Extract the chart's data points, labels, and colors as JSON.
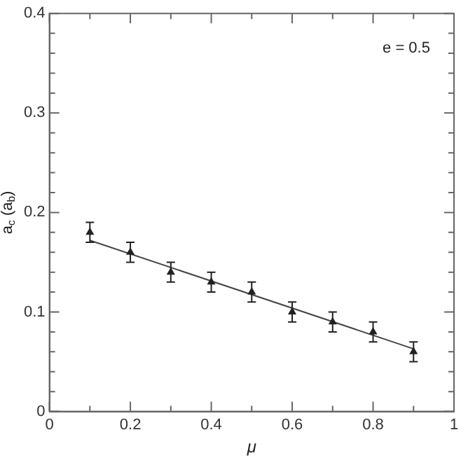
{
  "chart_data": {
    "type": "scatter",
    "xlabel": "μ",
    "ylabel": "a$_{c}$ (a$_{b}$)",
    "annotations": [
      "e = 0.5"
    ],
    "xlim": [
      0,
      1
    ],
    "ylim": [
      0,
      0.4
    ],
    "xticks": [
      0,
      {
        "value": 0.1,
        "label": null
      },
      0.2,
      {
        "value": 0.3,
        "label": null
      },
      0.4,
      {
        "value": 0.5,
        "label": null
      },
      0.6,
      {
        "value": 0.7,
        "label": null
      },
      0.8,
      {
        "value": 0.9,
        "label": null
      },
      1
    ],
    "yticks": [
      0,
      {
        "value": 0.02,
        "label": null
      },
      {
        "value": 0.04,
        "label": null
      },
      {
        "value": 0.06,
        "label": null
      },
      {
        "value": 0.08,
        "label": null
      },
      0.1,
      {
        "value": 0.12,
        "label": null
      },
      {
        "value": 0.14,
        "label": null
      },
      {
        "value": 0.16,
        "label": null
      },
      {
        "value": 0.18,
        "label": null
      },
      0.2,
      {
        "value": 0.22,
        "label": null
      },
      {
        "value": 0.24,
        "label": null
      },
      {
        "value": 0.26,
        "label": null
      },
      {
        "value": 0.28,
        "label": null
      },
      0.3,
      {
        "value": 0.32,
        "label": null
      },
      {
        "value": 0.34,
        "label": null
      },
      {
        "value": 0.36,
        "label": null
      },
      {
        "value": 0.38,
        "label": null
      },
      0.4
    ],
    "grid": false,
    "legend": false,
    "marker": "triangle",
    "series": [
      {
        "color": "#222222",
        "x": [
          0.1,
          0.2,
          0.3,
          0.4,
          0.5,
          0.6,
          0.7,
          0.8,
          0.9
        ],
        "values": [
          0.18,
          0.16,
          0.14,
          0.13,
          0.12,
          0.1,
          0.09,
          0.08,
          0.06
        ],
        "errors": [
          0.01,
          0.01,
          0.01,
          0.01,
          0.01,
          0.01,
          0.01,
          0.01,
          0.01
        ]
      },
      {
        "type": "line",
        "color": "#444444",
        "x": [
          0.1,
          0.9
        ],
        "values": [
          0.172,
          0.063
        ],
        "marker": "none",
        "line_style": "solid"
      }
    ]
  }
}
